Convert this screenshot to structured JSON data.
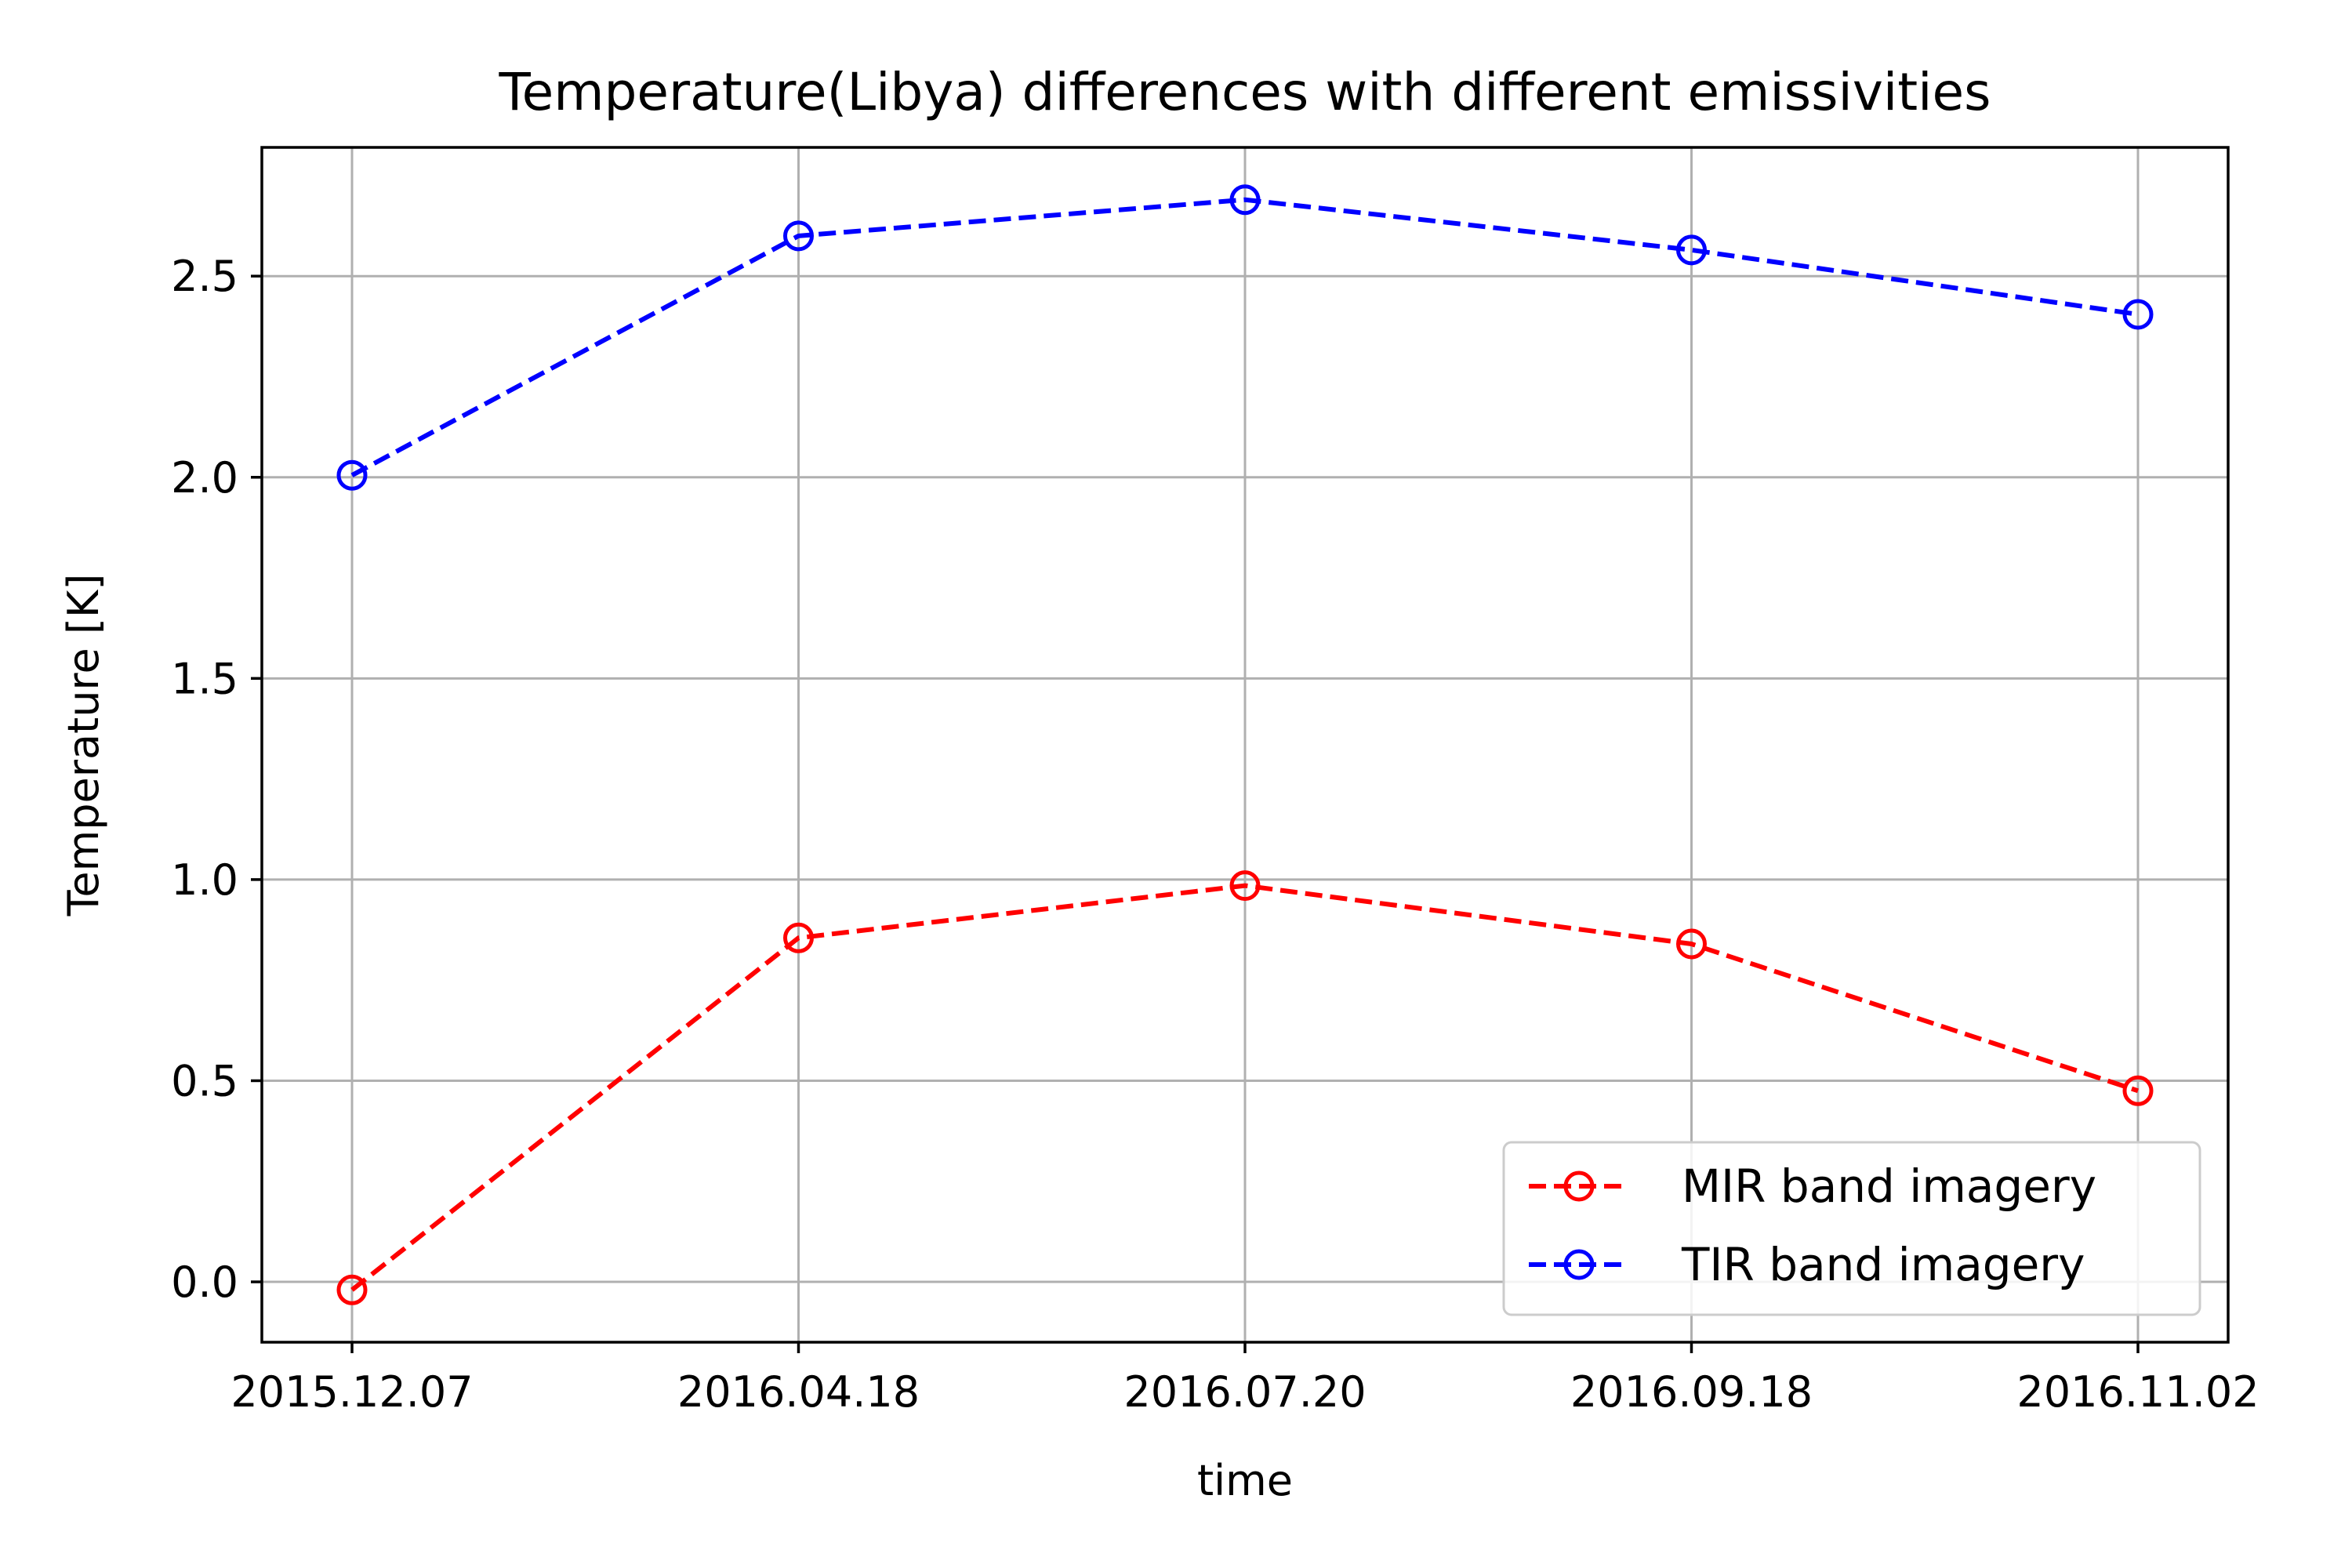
{
  "chart_data": {
    "type": "line",
    "title": "Temperature(Libya) differences with different emissivities",
    "xlabel": "time",
    "ylabel": "Temperature [K]",
    "categories": [
      "2015.12.07",
      "2016.04.18",
      "2016.07.20",
      "2016.09.18",
      "2016.11.02"
    ],
    "ylim": [
      -0.15,
      2.82
    ],
    "yticks": [
      0.0,
      0.5,
      1.0,
      1.5,
      2.0,
      2.5
    ],
    "ytick_labels": [
      "0.0",
      "0.5",
      "1.0",
      "1.5",
      "2.0",
      "2.5"
    ],
    "grid": true,
    "legend_position": "lower-right",
    "series": [
      {
        "name": "MIR band imagery",
        "color": "#ff0000",
        "line_style": "dashed",
        "marker": "open-circle",
        "values": [
          -0.02,
          0.855,
          0.985,
          0.84,
          0.475
        ]
      },
      {
        "name": "TIR band imagery",
        "color": "#0000ff",
        "line_style": "dashed",
        "marker": "open-circle",
        "values": [
          2.005,
          2.6,
          2.69,
          2.565,
          2.405
        ]
      }
    ]
  }
}
